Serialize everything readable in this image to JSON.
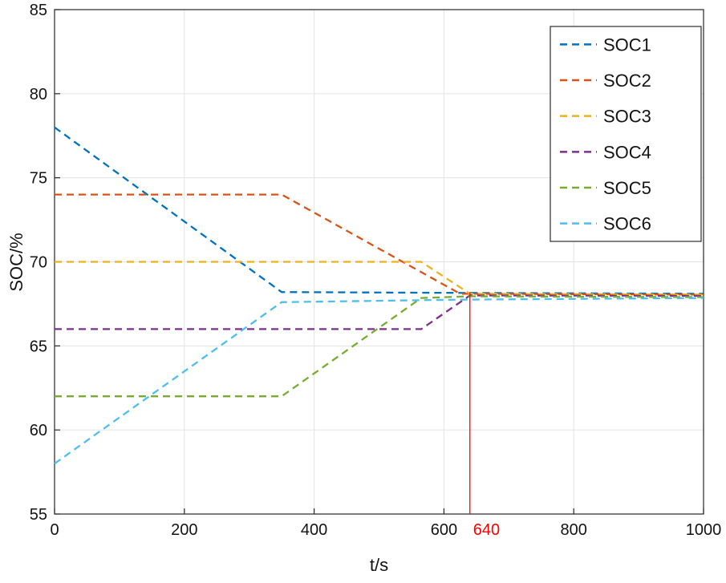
{
  "chart_data": {
    "type": "line",
    "title": "",
    "xlabel": "t/s",
    "ylabel": "SOC/%",
    "xlim": [
      0,
      1000
    ],
    "ylim": [
      55,
      85
    ],
    "xticks": [
      0,
      200,
      400,
      600,
      800,
      1000
    ],
    "yticks": [
      55,
      60,
      65,
      70,
      75,
      80,
      85
    ],
    "grid": true,
    "line_style": "dashed",
    "legend_position": "top-right",
    "series": [
      {
        "name": "SOC1",
        "color": "#0072BD",
        "points": [
          [
            0,
            78
          ],
          [
            350,
            68.2
          ],
          [
            640,
            68.15
          ],
          [
            1000,
            68.1
          ]
        ]
      },
      {
        "name": "SOC2",
        "color": "#D95319",
        "points": [
          [
            0,
            74
          ],
          [
            350,
            74
          ],
          [
            625,
            68.1
          ],
          [
            1000,
            68.05
          ]
        ]
      },
      {
        "name": "SOC3",
        "color": "#EDB120",
        "points": [
          [
            0,
            70
          ],
          [
            565,
            70
          ],
          [
            640,
            68.1
          ],
          [
            1000,
            68.05
          ]
        ]
      },
      {
        "name": "SOC4",
        "color": "#7E2F8E",
        "points": [
          [
            0,
            66
          ],
          [
            565,
            66
          ],
          [
            640,
            68.0
          ],
          [
            1000,
            67.98
          ]
        ]
      },
      {
        "name": "SOC5",
        "color": "#77AC30",
        "points": [
          [
            0,
            62
          ],
          [
            350,
            62
          ],
          [
            565,
            67.85
          ],
          [
            640,
            67.95
          ],
          [
            1000,
            67.9
          ]
        ]
      },
      {
        "name": "SOC6",
        "color": "#4DBEEE",
        "points": [
          [
            0,
            58
          ],
          [
            350,
            67.6
          ],
          [
            620,
            67.75
          ],
          [
            1000,
            67.85
          ]
        ]
      }
    ],
    "annotation": {
      "x": 640,
      "label": "640",
      "color": "#FF0000",
      "line_from_y": 55,
      "line_to_y": 68.2
    }
  },
  "colors": {
    "axis": "#262626",
    "grid": "#e3e3e3",
    "text": "#131313",
    "background": "#ffffff",
    "legend_border": "#2b2b2b"
  }
}
